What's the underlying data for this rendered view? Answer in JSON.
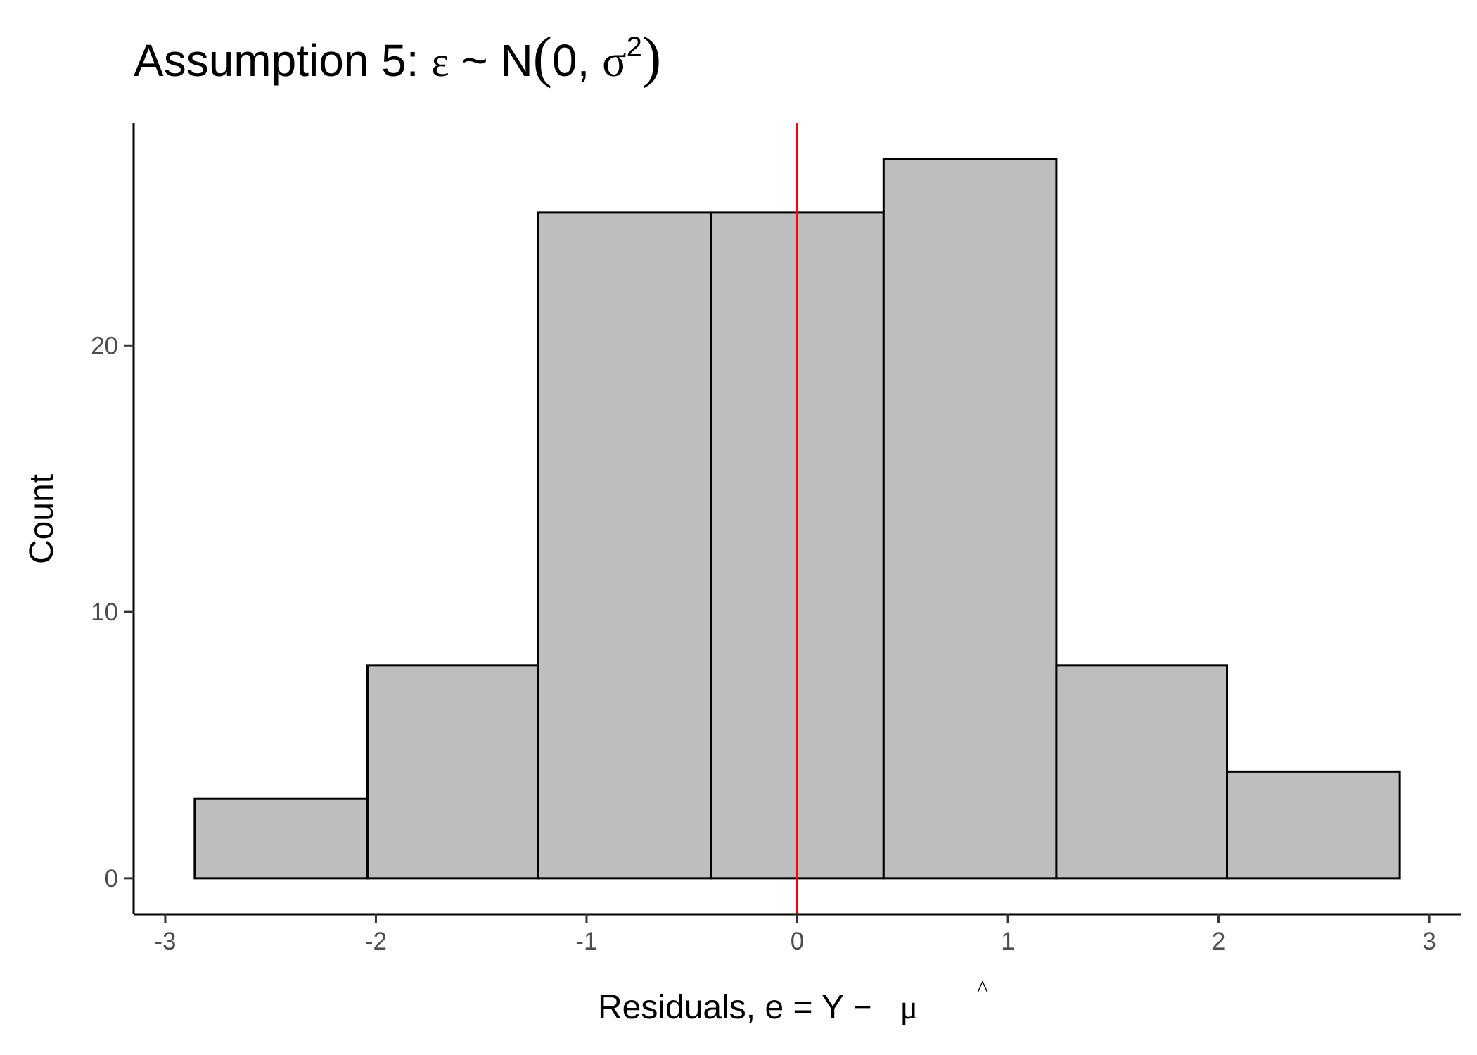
{
  "chart_data": {
    "type": "histogram",
    "title": {
      "prefix": "Assumption 5: ",
      "epsilon": "ε",
      "tilde": " ~ ",
      "N": "N",
      "open": "(",
      "zero": "0, ",
      "sigma": "σ",
      "sup": "2",
      "close": ")"
    },
    "xlabel": {
      "prefix": "Residuals, e = Y ",
      "minus": "−",
      "mu": "μ",
      "hat": "^"
    },
    "ylabel": "Count",
    "bins": [
      {
        "x0": -2.86,
        "x1": -2.04,
        "count": 3
      },
      {
        "x0": -2.04,
        "x1": -1.23,
        "count": 8
      },
      {
        "x0": -1.23,
        "x1": -0.41,
        "count": 25
      },
      {
        "x0": -0.41,
        "x1": 0.41,
        "count": 25
      },
      {
        "x0": 0.41,
        "x1": 1.23,
        "count": 27
      },
      {
        "x0": 1.23,
        "x1": 2.04,
        "count": 8
      },
      {
        "x0": 2.04,
        "x1": 2.86,
        "count": 4
      }
    ],
    "reference_line": {
      "x": 0,
      "color": "#ff0000"
    },
    "bar_fill": "#bebebe",
    "bar_stroke": "#000000",
    "xlim": [
      -3.15,
      3.15
    ],
    "ylim": [
      -1.35,
      28.35
    ],
    "xticks": [
      -3,
      -2,
      -1,
      0,
      1,
      2,
      3
    ],
    "xtick_labels": [
      "-3",
      "-2",
      "-1",
      "0",
      "1",
      "2",
      "3"
    ],
    "yticks": [
      0,
      10,
      20
    ],
    "ytick_labels": [
      "0",
      "10",
      "20"
    ],
    "grid": false
  }
}
